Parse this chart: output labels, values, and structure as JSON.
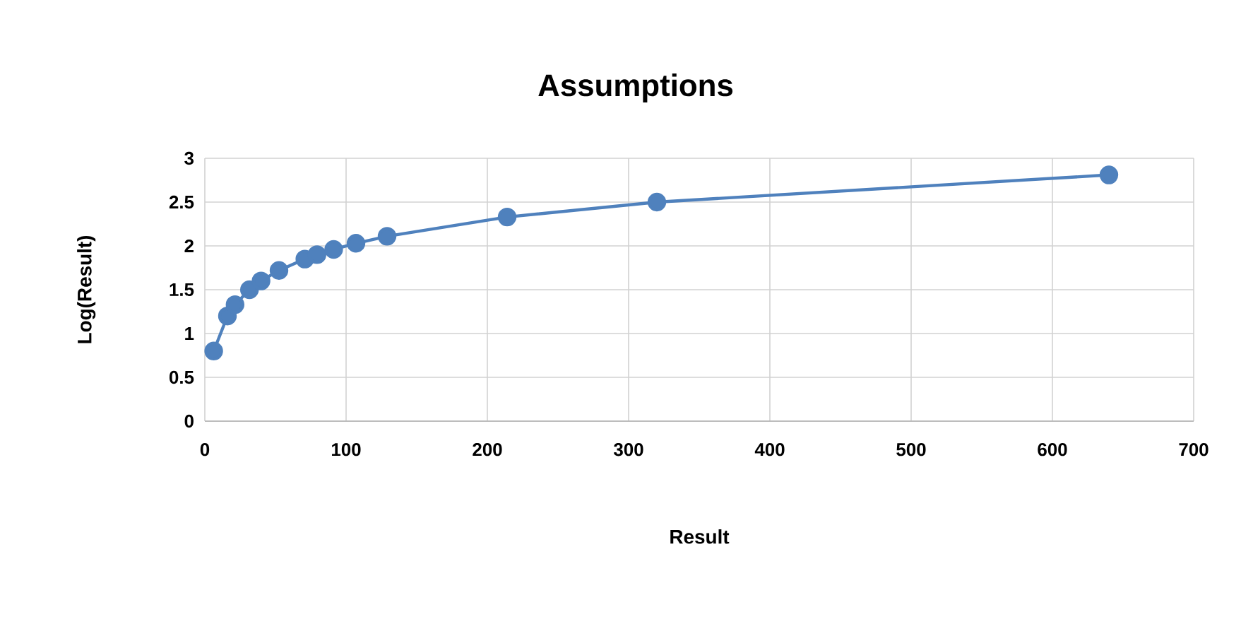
{
  "chart_data": {
    "type": "line",
    "title": "Assumptions",
    "xlabel": "Result",
    "ylabel": "Log(Result)",
    "x": [
      6.3,
      16,
      21.4,
      31.6,
      39.8,
      52.5,
      70.8,
      79.4,
      91.2,
      107,
      129,
      214,
      320,
      640
    ],
    "values": [
      0.8,
      1.2,
      1.33,
      1.5,
      1.6,
      1.72,
      1.85,
      1.9,
      1.96,
      2.03,
      2.11,
      2.33,
      2.5,
      2.81
    ],
    "color": "#4f81bd",
    "marker": "circle",
    "line_style": "solid",
    "grid": true,
    "xlim": [
      0,
      700
    ],
    "xticks": [
      0,
      100,
      200,
      300,
      400,
      500,
      600,
      700
    ],
    "ylim": [
      0,
      3
    ],
    "yticks": [
      0,
      0.5,
      1,
      1.5,
      2,
      2.5,
      3
    ]
  }
}
